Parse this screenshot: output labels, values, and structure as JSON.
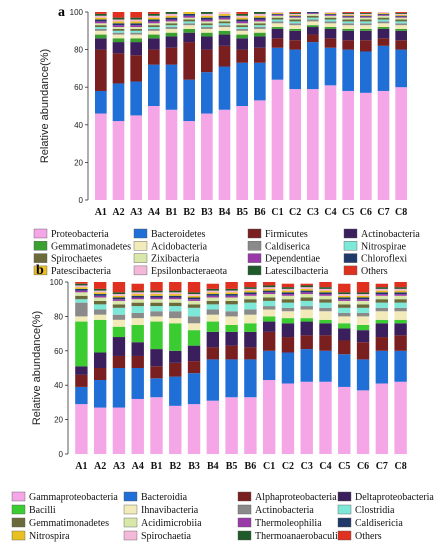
{
  "chart_data": [
    {
      "type": "bar",
      "stacked": true,
      "panel_label": "a",
      "ylabel": "Relative abundance(%)",
      "ylim": [
        0,
        100
      ],
      "yticks": [
        0,
        20,
        40,
        60,
        80,
        100
      ],
      "categories": [
        "A1",
        "A2",
        "A3",
        "A4",
        "B1",
        "B2",
        "B3",
        "B4",
        "B5",
        "B6",
        "C1",
        "C2",
        "C3",
        "C4",
        "C5",
        "C6",
        "C7",
        "C8"
      ],
      "series": [
        {
          "name": "Proteobacteria",
          "color": "#f4a6e6",
          "values": [
            46,
            42,
            45,
            50,
            48,
            42,
            46,
            48,
            50,
            53,
            64,
            59,
            59,
            61,
            58,
            57,
            58,
            60
          ]
        },
        {
          "name": "Bacteroidetes",
          "color": "#1f6fd6",
          "values": [
            12,
            20,
            18,
            22,
            24,
            22,
            22,
            23,
            23,
            20,
            17,
            21,
            25,
            20,
            22,
            22,
            24,
            20
          ]
        },
        {
          "name": "Firmicutes",
          "color": "#7a1f1f",
          "values": [
            22,
            16,
            14,
            8,
            9,
            20,
            12,
            11,
            7,
            8,
            5,
            5,
            4,
            5,
            5,
            6,
            4,
            5
          ]
        },
        {
          "name": "Actinobacteria",
          "color": "#3a1f5c",
          "values": [
            6,
            6,
            7,
            6,
            6,
            5,
            7,
            6,
            6,
            6,
            5,
            5,
            4,
            5,
            5,
            5,
            5,
            5
          ]
        },
        {
          "name": "Gemmatimonadetes",
          "color": "#3aa030",
          "values": [
            2,
            2,
            2,
            2,
            2,
            2,
            2,
            2,
            2,
            2,
            1,
            1,
            1,
            1,
            1,
            1,
            1,
            1
          ]
        },
        {
          "name": "Acidobacteria",
          "color": "#f2eab8",
          "values": [
            2,
            2,
            2,
            2,
            2,
            2,
            2,
            2,
            2,
            2,
            2,
            2,
            2,
            2,
            2,
            2,
            2,
            2
          ]
        },
        {
          "name": "Caldiserica",
          "color": "#8a8a8a",
          "values": [
            1,
            1,
            1,
            1,
            1,
            1,
            1,
            1,
            1,
            1,
            1,
            1,
            1,
            1,
            1,
            1,
            1,
            1
          ]
        },
        {
          "name": "Nitrospirae",
          "color": "#7ee8d8",
          "values": [
            1,
            1,
            1,
            1,
            1,
            1,
            1,
            1,
            1,
            1,
            1,
            1,
            1,
            1,
            1,
            1,
            1,
            1
          ]
        },
        {
          "name": "Spirochaetes",
          "color": "#6a6a3a",
          "values": [
            1,
            1,
            1,
            1,
            1,
            1,
            1,
            1,
            1,
            1,
            1,
            1,
            1,
            1,
            1,
            1,
            1,
            1
          ]
        },
        {
          "name": "Zixibacteria",
          "color": "#d8e8a8",
          "values": [
            1,
            1,
            1,
            1,
            1,
            1,
            1,
            1,
            1,
            1,
            1,
            1,
            1,
            1,
            1,
            1,
            1,
            1
          ]
        },
        {
          "name": "Dependentiae",
          "color": "#9a3aa8",
          "values": [
            1,
            1,
            1,
            1,
            1,
            1,
            1,
            1,
            1,
            1,
            0.5,
            0.5,
            0.5,
            0.5,
            0.5,
            0.5,
            0.5,
            0.5
          ]
        },
        {
          "name": "Chloroflexi",
          "color": "#1f3a6a",
          "values": [
            1,
            1,
            1,
            1,
            1,
            1,
            1,
            1,
            1,
            1,
            0.5,
            0.5,
            0.5,
            0.5,
            0.5,
            0.5,
            0.5,
            0.5
          ]
        },
        {
          "name": "Patescibacteria",
          "color": "#e8c020",
          "values": [
            1,
            1,
            1,
            1,
            1,
            1,
            1,
            1,
            1,
            1,
            0.5,
            0.5,
            0.5,
            0.5,
            0.5,
            0.5,
            0.5,
            0.5
          ]
        },
        {
          "name": "Epsilonbacteraeota",
          "color": "#f4b8d8",
          "values": [
            1,
            1,
            1,
            1,
            1,
            1,
            1,
            1,
            1,
            1,
            0.5,
            0.5,
            0.5,
            0.5,
            0.5,
            0.5,
            0.5,
            0.5
          ]
        },
        {
          "name": "Latescilbacteria",
          "color": "#1f5a2a",
          "values": [
            1,
            1,
            1,
            1,
            1,
            1,
            1,
            1,
            1,
            1,
            0.5,
            0.5,
            0.5,
            0.5,
            0.5,
            0.5,
            0.5,
            0.5
          ]
        },
        {
          "name": "Others",
          "color": "#e03020",
          "values": [
            1,
            4,
            6,
            3,
            3,
            1,
            4,
            3,
            5,
            4,
            3,
            3,
            0,
            3,
            4,
            4,
            3,
            4
          ]
        }
      ]
    },
    {
      "type": "bar",
      "stacked": true,
      "panel_label": "b",
      "ylabel": "Relative abundance(%)",
      "ylim": [
        0,
        100
      ],
      "yticks": [
        0,
        20,
        40,
        60,
        80,
        100
      ],
      "categories": [
        "A1",
        "A2",
        "A3",
        "A4",
        "B1",
        "B2",
        "B3",
        "B4",
        "B5",
        "B6",
        "C1",
        "C2",
        "C3",
        "C4",
        "C5",
        "C6",
        "C7",
        "C8"
      ],
      "series": [
        {
          "name": "Gammaproteobacteria",
          "color": "#f4a6e6",
          "values": [
            29,
            27,
            27,
            32,
            33,
            28,
            29,
            31,
            33,
            33,
            43,
            41,
            42,
            42,
            39,
            37,
            41,
            42
          ]
        },
        {
          "name": "Bacteroidia",
          "color": "#1f6fd6",
          "values": [
            10,
            16,
            23,
            18,
            11,
            17,
            18,
            24,
            22,
            22,
            17,
            18,
            19,
            18,
            19,
            18,
            19,
            18
          ]
        },
        {
          "name": "Alphaproteobacteria",
          "color": "#7a1f1f",
          "values": [
            7,
            7,
            7,
            7,
            7,
            8,
            7,
            7,
            8,
            7,
            11,
            9,
            8,
            9,
            8,
            10,
            8,
            9
          ]
        },
        {
          "name": "Deltaproteobacteria",
          "color": "#3a1f5c",
          "values": [
            5,
            9,
            11,
            8,
            10,
            7,
            9,
            9,
            8,
            9,
            6,
            8,
            8,
            7,
            7,
            7,
            8,
            7
          ]
        },
        {
          "name": "Bacilli",
          "color": "#3acc30",
          "values": [
            26,
            19,
            6,
            10,
            16,
            16,
            9,
            6,
            4,
            5,
            3,
            3,
            2,
            2,
            3,
            3,
            2,
            2
          ]
        },
        {
          "name": "Ihnavibacteria",
          "color": "#f2eab8",
          "values": [
            3,
            3,
            4,
            4,
            3,
            3,
            4,
            4,
            5,
            5,
            4,
            4,
            5,
            5,
            4,
            5,
            5,
            5
          ]
        },
        {
          "name": "Actinobacteria",
          "color": "#8a8a8a",
          "values": [
            8,
            3,
            3,
            3,
            3,
            4,
            4,
            3,
            3,
            3,
            2,
            2,
            2,
            2,
            2,
            2,
            2,
            2
          ]
        },
        {
          "name": "Clostridia",
          "color": "#7ee8d8",
          "values": [
            2,
            3,
            4,
            4,
            3,
            3,
            5,
            3,
            4,
            4,
            3,
            3,
            3,
            3,
            3,
            3,
            3,
            3
          ]
        },
        {
          "name": "Gemmatimonadetes",
          "color": "#6a6a3a",
          "values": [
            2,
            2,
            2,
            2,
            2,
            2,
            2,
            2,
            2,
            2,
            2,
            2,
            2,
            2,
            2,
            2,
            2,
            2
          ]
        },
        {
          "name": "Acidimicrobiia",
          "color": "#d8e8a8",
          "values": [
            2,
            2,
            2,
            2,
            2,
            2,
            2,
            2,
            2,
            2,
            2,
            2,
            2,
            2,
            2,
            2,
            2,
            2
          ]
        },
        {
          "name": "Thermoleophilia",
          "color": "#9a3aa8",
          "values": [
            1,
            1,
            1,
            1,
            1,
            1,
            1,
            1,
            1,
            1,
            1,
            1,
            1,
            1,
            1,
            1,
            1,
            1
          ]
        },
        {
          "name": "Caldisericia",
          "color": "#1f3a6a",
          "values": [
            1,
            1,
            1,
            1,
            1,
            1,
            1,
            1,
            1,
            1,
            1,
            1,
            1,
            1,
            1,
            1,
            1,
            1
          ]
        },
        {
          "name": "Nitrospira",
          "color": "#e8c020",
          "values": [
            1,
            1,
            1,
            1,
            1,
            1,
            1,
            1,
            1,
            1,
            1,
            1,
            1,
            1,
            1,
            1,
            1,
            1
          ]
        },
        {
          "name": "Spirochaetia",
          "color": "#f4b8d8",
          "values": [
            1,
            1,
            1,
            1,
            1,
            1,
            1,
            1,
            1,
            1,
            1,
            1,
            1,
            1,
            1,
            1,
            1,
            1
          ]
        },
        {
          "name": "Thermoanaerobaculia",
          "color": "#1f5a2a",
          "values": [
            1,
            1,
            1,
            1,
            1,
            1,
            1,
            1,
            1,
            1,
            1,
            1,
            1,
            1,
            1,
            1,
            1,
            1
          ]
        },
        {
          "name": "Others",
          "color": "#e03020",
          "values": [
            1,
            4,
            6,
            4,
            5,
            5,
            6,
            3,
            4,
            3,
            2,
            2,
            1,
            3,
            5,
            6,
            2,
            3
          ]
        }
      ]
    }
  ]
}
